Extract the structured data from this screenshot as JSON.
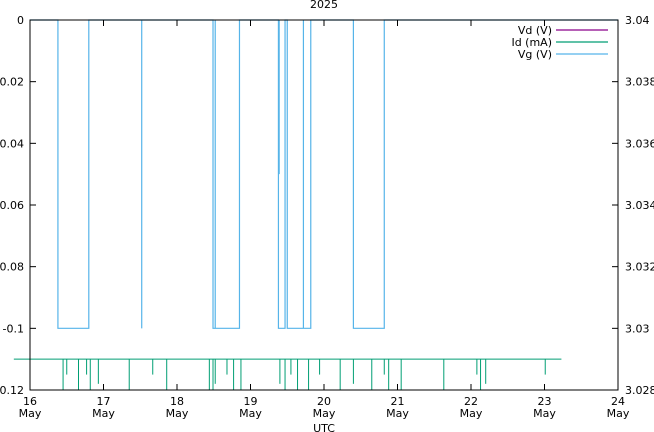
{
  "chart_data": {
    "type": "line",
    "title": "2025",
    "xlabel": "UTC",
    "x_ticks": [
      {
        "value": 16,
        "line1": "16",
        "line2": "May"
      },
      {
        "value": 17,
        "line1": "17",
        "line2": "May"
      },
      {
        "value": 18,
        "line1": "18",
        "line2": "May"
      },
      {
        "value": 19,
        "line1": "19",
        "line2": "May"
      },
      {
        "value": 20,
        "line1": "20",
        "line2": "May"
      },
      {
        "value": 21,
        "line1": "21",
        "line2": "May"
      },
      {
        "value": 22,
        "line1": "22",
        "line2": "May"
      },
      {
        "value": 23,
        "line1": "23",
        "line2": "May"
      },
      {
        "value": 24,
        "line1": "24",
        "line2": "May"
      }
    ],
    "xlim": [
      16,
      24
    ],
    "ylim_left": [
      -0.12,
      0
    ],
    "yticks_left": [
      "0",
      "-0.02",
      "-0.04",
      "-0.06",
      "-0.08",
      "-0.1",
      "-0.12"
    ],
    "ylim_right": [
      3.028,
      3.04
    ],
    "yticks_right": [
      "3.04",
      "3.038",
      "3.036",
      "3.034",
      "3.032",
      "3.03",
      "3.028"
    ],
    "legend_position": "top-right",
    "grid": false,
    "series": [
      {
        "name": "Vd (V)",
        "color": "#8b008b",
        "axis": "left",
        "points": []
      },
      {
        "name": "Id (mA)",
        "color": "#009e73",
        "axis": "left",
        "baseline": -0.11,
        "x_range": [
          15.78,
          23.23
        ],
        "dips": [
          [
            16.45,
            -0.12
          ],
          [
            16.5,
            -0.115
          ],
          [
            16.66,
            -0.12
          ],
          [
            16.77,
            -0.115
          ],
          [
            16.82,
            -0.12
          ],
          [
            16.93,
            -0.118
          ],
          [
            17.35,
            -0.12
          ],
          [
            17.67,
            -0.115
          ],
          [
            17.86,
            -0.12
          ],
          [
            18.44,
            -0.12
          ],
          [
            18.49,
            -0.12
          ],
          [
            18.52,
            -0.118
          ],
          [
            18.68,
            -0.115
          ],
          [
            18.77,
            -0.12
          ],
          [
            18.87,
            -0.12
          ],
          [
            19.4,
            -0.118
          ],
          [
            19.47,
            -0.12
          ],
          [
            19.55,
            -0.115
          ],
          [
            19.64,
            -0.12
          ],
          [
            19.79,
            -0.12
          ],
          [
            19.94,
            -0.115
          ],
          [
            20.22,
            -0.12
          ],
          [
            20.4,
            -0.118
          ],
          [
            20.65,
            -0.12
          ],
          [
            20.82,
            -0.115
          ],
          [
            20.88,
            -0.12
          ],
          [
            21.05,
            -0.12
          ],
          [
            21.63,
            -0.12
          ],
          [
            22.08,
            -0.115
          ],
          [
            22.13,
            -0.12
          ],
          [
            22.2,
            -0.118
          ],
          [
            23.01,
            -0.115
          ]
        ]
      },
      {
        "name": "Vg (V)",
        "color": "#56b4e9",
        "axis": "right",
        "high": 3.04,
        "low": 3.03,
        "low_intervals": [
          [
            16.38,
            16.8
          ],
          [
            18.49,
            18.85
          ],
          [
            19.38,
            19.47
          ],
          [
            19.5,
            19.82
          ],
          [
            20.4,
            20.82
          ]
        ],
        "spikes": [
          17.52,
          18.52,
          19.72
        ],
        "partial_spikes": [
          [
            19.39,
            3.035
          ]
        ]
      }
    ]
  }
}
